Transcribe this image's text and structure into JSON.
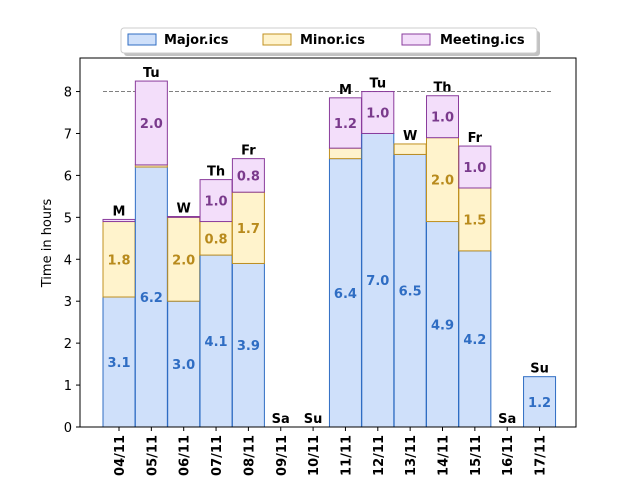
{
  "chart_data": {
    "type": "bar",
    "stacked": true,
    "ylabel": "Time in hours",
    "xlabel": "",
    "ylim": [
      0,
      8.8
    ],
    "yticks": [
      0,
      1,
      2,
      3,
      4,
      5,
      6,
      7,
      8
    ],
    "reference_line": 8,
    "grid": false,
    "legend_position": "top-center",
    "categories": [
      "04/11",
      "05/11",
      "06/11",
      "07/11",
      "08/11",
      "09/11",
      "10/11",
      "11/11",
      "12/11",
      "13/11",
      "14/11",
      "15/11",
      "16/11",
      "17/11"
    ],
    "day_labels": [
      "M",
      "Tu",
      "W",
      "Th",
      "Fr",
      "Sa",
      "Su",
      "M",
      "Tu",
      "W",
      "Th",
      "Fr",
      "Sa",
      "Su"
    ],
    "series": [
      {
        "name": "Major.ics",
        "fill": "#cfe0fa",
        "stroke": "#2f6dc3",
        "label_color": "#2f6dc3",
        "values": [
          3.1,
          6.2,
          3.0,
          4.1,
          3.9,
          0,
          0,
          6.4,
          7.0,
          6.5,
          4.9,
          4.2,
          0,
          1.2
        ],
        "labels": [
          "3.1",
          "6.2",
          "3.0",
          "4.1",
          "3.9",
          "",
          "",
          "6.4",
          "7.0",
          "6.5",
          "4.9",
          "4.2",
          "",
          "1.2"
        ]
      },
      {
        "name": "Minor.ics",
        "fill": "#fff3cc",
        "stroke": "#c09020",
        "label_color": "#b88a1c",
        "values": [
          1.8,
          0.05,
          2.0,
          0.8,
          1.7,
          0,
          0,
          0.25,
          0,
          0.25,
          2.0,
          1.5,
          0,
          0
        ],
        "labels": [
          "1.8",
          "",
          "2.0",
          "0.8",
          "1.7",
          "",
          "",
          "",
          "",
          "",
          "2.0",
          "1.5",
          "",
          ""
        ]
      },
      {
        "name": "Meeting.ics",
        "fill": "#f3defa",
        "stroke": "#8a3c9c",
        "label_color": "#7a3a8c",
        "values": [
          0.05,
          2.0,
          0.02,
          1.0,
          0.8,
          0,
          0,
          1.2,
          1.0,
          0,
          1.0,
          1.0,
          0,
          0
        ],
        "labels": [
          "",
          "2.0",
          "",
          "1.0",
          "0.8",
          "",
          "",
          "1.2",
          "1.0",
          "",
          "1.0",
          "1.0",
          "",
          ""
        ]
      }
    ]
  }
}
